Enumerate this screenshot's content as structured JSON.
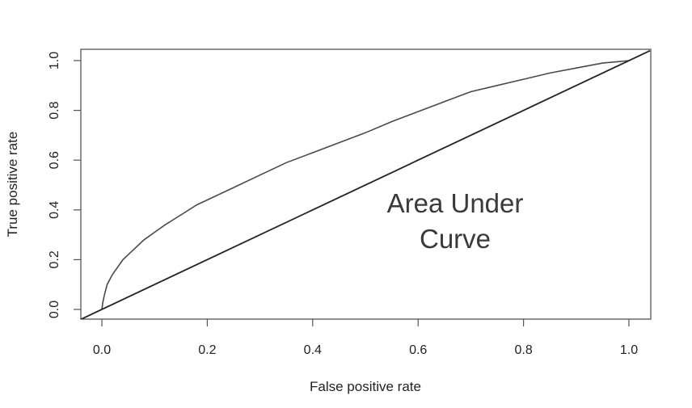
{
  "chart_data": {
    "type": "line",
    "title": "",
    "xlabel": "False positive rate",
    "ylabel": "True positive rate",
    "xlim": [
      0,
      1
    ],
    "ylim": [
      0,
      1
    ],
    "x_ticks": [
      "0.0",
      "0.2",
      "0.4",
      "0.6",
      "0.8",
      "1.0"
    ],
    "y_ticks": [
      "0.0",
      "0.2",
      "0.4",
      "0.6",
      "0.8",
      "1.0"
    ],
    "grid": false,
    "legend": "none",
    "annotation": [
      "Area Under",
      "Curve"
    ],
    "colors": {
      "curve": "#4a4a4a",
      "diagonal": "#222222",
      "frame": "#555555"
    },
    "series": [
      {
        "x": [
          0,
          0.002,
          0.005,
          0.01,
          0.015,
          0.02,
          0.03,
          0.04,
          0.05,
          0.06,
          0.08,
          0.1,
          0.12,
          0.15,
          0.18,
          0.2,
          0.25,
          0.3,
          0.35,
          0.4,
          0.45,
          0.5,
          0.55,
          0.6,
          0.65,
          0.7,
          0.75,
          0.8,
          0.85,
          0.9,
          0.95,
          1.0
        ],
        "y": [
          0,
          0.03,
          0.06,
          0.1,
          0.12,
          0.14,
          0.17,
          0.2,
          0.22,
          0.24,
          0.28,
          0.31,
          0.34,
          0.38,
          0.42,
          0.44,
          0.49,
          0.54,
          0.59,
          0.63,
          0.67,
          0.71,
          0.755,
          0.795,
          0.835,
          0.875,
          0.9,
          0.925,
          0.95,
          0.97,
          0.99,
          1.0
        ]
      },
      {
        "x": [
          -0.04,
          1.04
        ],
        "y": [
          -0.04,
          1.04
        ]
      }
    ]
  }
}
